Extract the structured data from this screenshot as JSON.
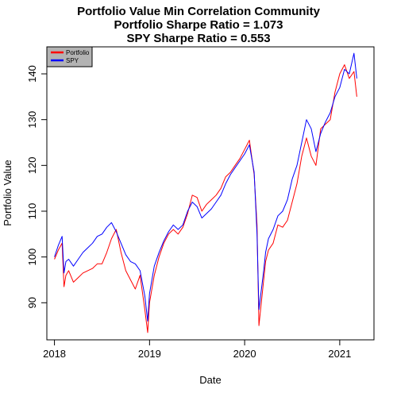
{
  "chart_data": {
    "type": "line",
    "title": "Portfolio Value Min Correlation Community",
    "subtitle_lines": [
      "Portfolio Sharpe Ratio = 1.073",
      "SPY Sharpe Ratio = 0.553"
    ],
    "xlabel": "Date",
    "ylabel": "Portfolio Value",
    "x_tick_labels": [
      "2018",
      "2019",
      "2020",
      "2021"
    ],
    "x_ticks": [
      2018,
      2019,
      2020,
      2021
    ],
    "y_ticks": [
      90,
      100,
      110,
      120,
      130,
      140
    ],
    "y_tick_labels": [
      "90",
      "100",
      "110",
      "120",
      "130",
      "140"
    ],
    "xlim": [
      2017.92,
      2021.36
    ],
    "ylim": [
      81.9,
      145.9
    ],
    "grid": false,
    "legend_position": "top-left",
    "series": [
      {
        "name": "Portfolio",
        "color": "#ff0000",
        "x": [
          2018.0,
          2018.04,
          2018.08,
          2018.1,
          2018.12,
          2018.15,
          2018.2,
          2018.25,
          2018.3,
          2018.35,
          2018.4,
          2018.45,
          2018.5,
          2018.55,
          2018.6,
          2018.65,
          2018.7,
          2018.75,
          2018.8,
          2018.85,
          2018.9,
          2018.95,
          2018.98,
          2019.0,
          2019.05,
          2019.1,
          2019.15,
          2019.2,
          2019.25,
          2019.3,
          2019.35,
          2019.4,
          2019.45,
          2019.5,
          2019.55,
          2019.6,
          2019.65,
          2019.7,
          2019.75,
          2019.8,
          2019.85,
          2019.9,
          2019.95,
          2020.0,
          2020.05,
          2020.1,
          2020.13,
          2020.15,
          2020.2,
          2020.22,
          2020.25,
          2020.3,
          2020.35,
          2020.4,
          2020.45,
          2020.5,
          2020.55,
          2020.6,
          2020.65,
          2020.7,
          2020.75,
          2020.8,
          2020.85,
          2020.9,
          2020.95,
          2021.0,
          2021.05,
          2021.1,
          2021.15,
          2021.18
        ],
        "values": [
          99.5,
          101.5,
          103.0,
          93.5,
          96.0,
          97.0,
          94.5,
          95.5,
          96.5,
          97.0,
          97.5,
          98.5,
          98.5,
          101.0,
          104.0,
          106.0,
          101.0,
          97.0,
          95.0,
          93.0,
          96.0,
          88.5,
          83.5,
          90.0,
          96.0,
          100.0,
          103.0,
          105.0,
          106.0,
          105.0,
          106.5,
          109.5,
          113.5,
          113.0,
          110.0,
          111.5,
          112.5,
          113.5,
          115.0,
          117.5,
          118.5,
          120.0,
          121.5,
          123.5,
          125.5,
          118.0,
          107.0,
          85.0,
          95.0,
          99.0,
          101.5,
          103.0,
          107.0,
          106.5,
          108.0,
          112.0,
          116.0,
          122.0,
          126.0,
          122.0,
          120.0,
          128.0,
          129.0,
          130.0,
          136.0,
          140.0,
          142.0,
          139.0,
          140.5,
          135.0
        ]
      },
      {
        "name": "SPY",
        "color": "#0000ff",
        "x": [
          2018.0,
          2018.04,
          2018.08,
          2018.1,
          2018.12,
          2018.15,
          2018.2,
          2018.25,
          2018.3,
          2018.35,
          2018.4,
          2018.45,
          2018.5,
          2018.55,
          2018.6,
          2018.65,
          2018.7,
          2018.75,
          2018.8,
          2018.85,
          2018.9,
          2018.95,
          2018.98,
          2019.0,
          2019.05,
          2019.1,
          2019.15,
          2019.2,
          2019.25,
          2019.3,
          2019.35,
          2019.4,
          2019.45,
          2019.5,
          2019.55,
          2019.6,
          2019.65,
          2019.7,
          2019.75,
          2019.8,
          2019.85,
          2019.9,
          2019.95,
          2020.0,
          2020.05,
          2020.1,
          2020.13,
          2020.15,
          2020.2,
          2020.22,
          2020.25,
          2020.3,
          2020.35,
          2020.4,
          2020.45,
          2020.5,
          2020.55,
          2020.6,
          2020.65,
          2020.7,
          2020.75,
          2020.8,
          2020.85,
          2020.9,
          2020.95,
          2021.0,
          2021.05,
          2021.1,
          2021.15,
          2021.18
        ],
        "values": [
          100.0,
          102.5,
          104.5,
          96.5,
          99.0,
          99.5,
          98.0,
          99.5,
          101.0,
          102.0,
          103.0,
          104.5,
          105.0,
          106.5,
          107.5,
          105.5,
          103.0,
          100.5,
          99.0,
          98.5,
          97.0,
          91.5,
          86.0,
          92.0,
          98.0,
          101.0,
          103.5,
          105.5,
          107.0,
          106.0,
          107.0,
          110.0,
          112.0,
          111.0,
          108.5,
          109.5,
          110.5,
          112.0,
          113.5,
          116.0,
          118.0,
          119.5,
          121.0,
          122.5,
          124.5,
          118.5,
          105.0,
          88.5,
          97.0,
          101.0,
          104.0,
          106.0,
          109.0,
          110.0,
          112.5,
          117.0,
          120.0,
          125.0,
          130.0,
          128.0,
          123.0,
          127.0,
          129.5,
          131.5,
          135.0,
          137.0,
          141.0,
          140.0,
          144.5,
          139.0
        ]
      }
    ]
  },
  "legend": {
    "items": [
      {
        "label": "Portfolio",
        "color": "#ff0000"
      },
      {
        "label": "SPY",
        "color": "#0000ff"
      }
    ],
    "background": "#b3b3b3"
  }
}
